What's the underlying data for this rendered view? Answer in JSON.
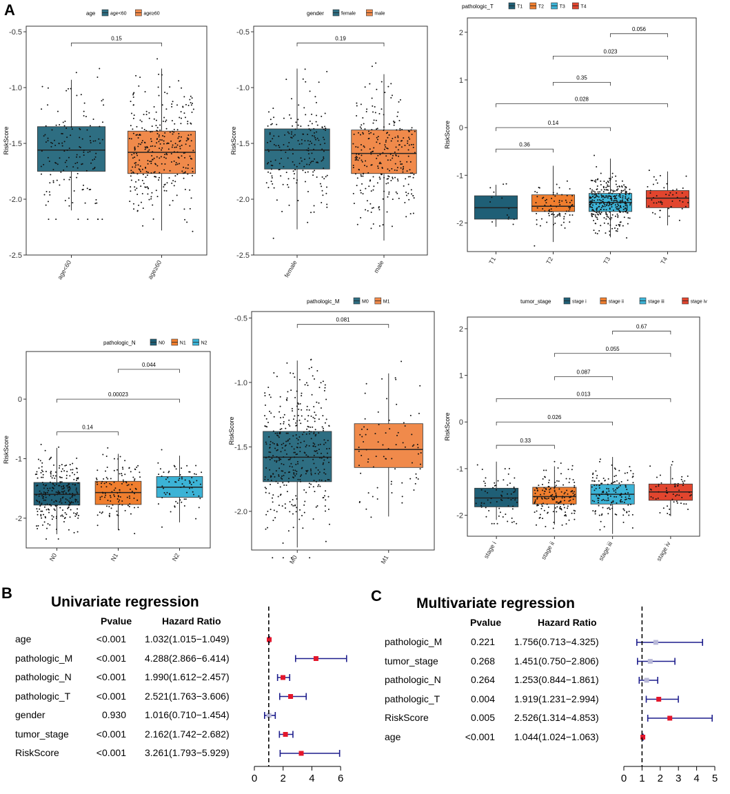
{
  "panels": {
    "a": "A",
    "b": "B",
    "c": "C"
  },
  "chart_data": [
    {
      "type": "box",
      "id": "age",
      "legend_title": "age",
      "categories": [
        "age<60",
        "age≥60"
      ],
      "colors": [
        "#2E6E82",
        "#F08A4B"
      ],
      "ylabel": "RiskScore",
      "ylim": [
        -2.5,
        -0.45
      ],
      "yticks": [
        -2.5,
        -2.0,
        -1.5,
        -1.0,
        -0.5
      ],
      "ytick_labels": [
        "-2.5",
        "-2.0",
        "-1.5",
        "-1.0",
        "-0.5"
      ],
      "boxes": [
        {
          "q1": -1.75,
          "median": -1.56,
          "q3": -1.35,
          "lo": -2.1,
          "hi": -0.93,
          "n": 150
        },
        {
          "q1": -1.77,
          "median": -1.58,
          "q3": -1.39,
          "lo": -2.28,
          "hi": -0.83,
          "n": 330
        }
      ],
      "comparisons": [
        {
          "from": 0,
          "to": 1,
          "label": "0.15",
          "y": -0.6
        }
      ]
    },
    {
      "type": "box",
      "id": "gender",
      "legend_title": "gender",
      "categories": [
        "female",
        "male"
      ],
      "colors": [
        "#2E6E82",
        "#F08A4B"
      ],
      "ylabel": "RiskScore",
      "ylim": [
        -2.5,
        -0.45
      ],
      "yticks": [
        -2.5,
        -2.0,
        -1.5,
        -1.0,
        -0.5
      ],
      "ytick_labels": [
        "-2.5",
        "-2.0",
        "-1.5",
        "-1.0",
        "-0.5"
      ],
      "boxes": [
        {
          "q1": -1.73,
          "median": -1.56,
          "q3": -1.37,
          "lo": -2.27,
          "hi": -0.83,
          "n": 200
        },
        {
          "q1": -1.77,
          "median": -1.59,
          "q3": -1.38,
          "lo": -2.37,
          "hi": -0.88,
          "n": 280
        }
      ],
      "comparisons": [
        {
          "from": 0,
          "to": 1,
          "label": "0.19",
          "y": -0.6
        }
      ]
    },
    {
      "type": "box",
      "id": "pathologic_T",
      "legend_title": "pathologic_T",
      "categories": [
        "T1",
        "T2",
        "T3",
        "T4"
      ],
      "colors": [
        "#1F5F76",
        "#F07E2E",
        "#3CB3D6",
        "#E2452E"
      ],
      "ylabel": "RiskScore",
      "ylim": [
        -2.6,
        2.3
      ],
      "yticks": [
        -2,
        -1,
        0,
        1,
        2
      ],
      "ytick_labels": [
        "-2",
        "-1",
        "0",
        "1",
        "2"
      ],
      "boxes": [
        {
          "q1": -1.92,
          "median": -1.68,
          "q3": -1.43,
          "lo": -2.08,
          "hi": -1.2,
          "n": 14
        },
        {
          "q1": -1.76,
          "median": -1.65,
          "q3": -1.41,
          "lo": -2.4,
          "hi": -0.8,
          "n": 80
        },
        {
          "q1": -1.76,
          "median": -1.57,
          "q3": -1.38,
          "lo": -2.3,
          "hi": -0.65,
          "n": 320
        },
        {
          "q1": -1.68,
          "median": -1.48,
          "q3": -1.32,
          "lo": -2.05,
          "hi": -0.92,
          "n": 50
        }
      ],
      "comparisons": [
        {
          "from": 0,
          "to": 1,
          "label": "0.36",
          "y": -0.45
        },
        {
          "from": 0,
          "to": 2,
          "label": "0.14",
          "y": 0.0
        },
        {
          "from": 0,
          "to": 3,
          "label": "0.028",
          "y": 0.5
        },
        {
          "from": 1,
          "to": 2,
          "label": "0.35",
          "y": 0.95
        },
        {
          "from": 1,
          "to": 3,
          "label": "0.023",
          "y": 1.5
        },
        {
          "from": 2,
          "to": 3,
          "label": "0.056",
          "y": 1.97
        }
      ]
    },
    {
      "type": "box",
      "id": "pathologic_N",
      "legend_title": "pathologic_N",
      "categories": [
        "N0",
        "N1",
        "N2"
      ],
      "colors": [
        "#1F5F76",
        "#F07E2E",
        "#3CB3D6"
      ],
      "ylabel": "RiskScore",
      "ylim": [
        -2.5,
        0.8
      ],
      "yticks": [
        -2,
        -1,
        0
      ],
      "ytick_labels": [
        "-2",
        "-1",
        "0"
      ],
      "boxes": [
        {
          "q1": -1.78,
          "median": -1.6,
          "q3": -1.4,
          "lo": -2.27,
          "hi": -0.82,
          "n": 260
        },
        {
          "q1": -1.77,
          "median": -1.57,
          "q3": -1.38,
          "lo": -2.2,
          "hi": -0.92,
          "n": 120
        },
        {
          "q1": -1.65,
          "median": -1.48,
          "q3": -1.3,
          "lo": -2.07,
          "hi": -0.95,
          "n": 70
        }
      ],
      "comparisons": [
        {
          "from": 0,
          "to": 1,
          "label": "0.14",
          "y": -0.55
        },
        {
          "from": 0,
          "to": 2,
          "label": "0.00023",
          "y": 0.0
        },
        {
          "from": 1,
          "to": 2,
          "label": "0.044",
          "y": 0.5
        }
      ]
    },
    {
      "type": "box",
      "id": "pathologic_M",
      "legend_title": "pathologic_M",
      "categories": [
        "M0",
        "M1"
      ],
      "colors": [
        "#2E6E82",
        "#F08A4B"
      ],
      "ylabel": "RiskScore",
      "ylim": [
        -2.3,
        -0.45
      ],
      "yticks": [
        -2.0,
        -1.5,
        -1.0,
        -0.5
      ],
      "ytick_labels": [
        "-2.0",
        "-1.5",
        "-1.0",
        "-0.5"
      ],
      "boxes": [
        {
          "q1": -1.77,
          "median": -1.58,
          "q3": -1.38,
          "lo": -2.28,
          "hi": -0.83,
          "n": 400
        },
        {
          "q1": -1.66,
          "median": -1.52,
          "q3": -1.32,
          "lo": -2.04,
          "hi": -0.93,
          "n": 80
        }
      ],
      "comparisons": [
        {
          "from": 0,
          "to": 1,
          "label": "0.081",
          "y": -0.55
        }
      ]
    },
    {
      "type": "box",
      "id": "tumor_stage",
      "legend_title": "tumor_stage",
      "categories": [
        "stage i",
        "stage ii",
        "stage iii",
        "stage iv"
      ],
      "colors": [
        "#1F5F76",
        "#F07E2E",
        "#3CB3D6",
        "#E2452E"
      ],
      "ylabel": "RiskScore",
      "ylim": [
        -2.45,
        2.25
      ],
      "yticks": [
        -2,
        -1,
        0,
        1,
        2
      ],
      "ytick_labels": [
        "-2",
        "-1",
        "0",
        "1",
        "2"
      ],
      "boxes": [
        {
          "q1": -1.82,
          "median": -1.63,
          "q3": -1.42,
          "lo": -2.1,
          "hi": -0.85,
          "n": 70
        },
        {
          "q1": -1.76,
          "median": -1.6,
          "q3": -1.4,
          "lo": -2.2,
          "hi": -0.95,
          "n": 160
        },
        {
          "q1": -1.76,
          "median": -1.55,
          "q3": -1.34,
          "lo": -2.4,
          "hi": -0.75,
          "n": 150
        },
        {
          "q1": -1.68,
          "median": -1.5,
          "q3": -1.33,
          "lo": -2.02,
          "hi": -0.95,
          "n": 60
        }
      ],
      "comparisons": [
        {
          "from": 0,
          "to": 1,
          "label": "0.33",
          "y": -0.5
        },
        {
          "from": 0,
          "to": 2,
          "label": "0.026",
          "y": 0.0
        },
        {
          "from": 0,
          "to": 3,
          "label": "0.013",
          "y": 0.5
        },
        {
          "from": 1,
          "to": 2,
          "label": "0.087",
          "y": 0.97
        },
        {
          "from": 1,
          "to": 3,
          "label": "0.055",
          "y": 1.47
        },
        {
          "from": 2,
          "to": 3,
          "label": "0.67",
          "y": 1.95
        }
      ]
    },
    {
      "type": "forest",
      "id": "univariate",
      "title": "Univariate regression",
      "col_pvalue": "Pvalue",
      "col_hr": "Hazard Ratio",
      "xlabel": "Hazard Ratio",
      "xlim": [
        0,
        7
      ],
      "xticks": [
        0,
        2,
        4,
        6
      ],
      "xtick_labels": [
        "0",
        "2",
        "4",
        "6"
      ],
      "ref_line": 1,
      "rows": [
        {
          "label": "age",
          "pvalue": "<0.001",
          "hr_text": "1.032(1.015−1.049)",
          "hr": 1.032,
          "lo": 1.015,
          "hi": 1.049,
          "significant": true
        },
        {
          "label": "pathologic_M",
          "pvalue": "<0.001",
          "hr_text": "4.288(2.866−6.414)",
          "hr": 4.288,
          "lo": 2.866,
          "hi": 6.414,
          "significant": true
        },
        {
          "label": "pathologic_N",
          "pvalue": "<0.001",
          "hr_text": "1.990(1.612−2.457)",
          "hr": 1.99,
          "lo": 1.612,
          "hi": 2.457,
          "significant": true
        },
        {
          "label": "pathologic_T",
          "pvalue": "<0.001",
          "hr_text": "2.521(1.763−3.606)",
          "hr": 2.521,
          "lo": 1.763,
          "hi": 3.606,
          "significant": true
        },
        {
          "label": "gender",
          "pvalue": "0.930",
          "hr_text": "1.016(0.710−1.454)",
          "hr": 1.016,
          "lo": 0.71,
          "hi": 1.454,
          "significant": false
        },
        {
          "label": "tumor_stage",
          "pvalue": "<0.001",
          "hr_text": "2.162(1.742−2.682)",
          "hr": 2.162,
          "lo": 1.742,
          "hi": 2.682,
          "significant": true
        },
        {
          "label": "RiskScore",
          "pvalue": "<0.001",
          "hr_text": "3.261(1.793−5.929)",
          "hr": 3.261,
          "lo": 1.793,
          "hi": 5.929,
          "significant": true
        }
      ]
    },
    {
      "type": "forest",
      "id": "multivariate",
      "title": "Multivariate regression",
      "col_pvalue": "Pvalue",
      "col_hr": "Hazard Ratio",
      "xlabel": "Hazard Ratio",
      "xlim": [
        0,
        5
      ],
      "xticks": [
        0,
        1,
        2,
        3,
        4,
        5
      ],
      "xtick_labels": [
        "0",
        "1",
        "2",
        "3",
        "4",
        "5"
      ],
      "ref_line": 1,
      "rows": [
        {
          "label": "pathologic_M",
          "pvalue": "0.221",
          "hr_text": "1.756(0.713−4.325)",
          "hr": 1.756,
          "lo": 0.713,
          "hi": 4.325,
          "significant": false
        },
        {
          "label": "tumor_stage",
          "pvalue": "0.268",
          "hr_text": "1.451(0.750−2.806)",
          "hr": 1.451,
          "lo": 0.75,
          "hi": 2.806,
          "significant": false
        },
        {
          "label": "pathologic_N",
          "pvalue": "0.264",
          "hr_text": "1.253(0.844−1.861)",
          "hr": 1.253,
          "lo": 0.844,
          "hi": 1.861,
          "significant": false
        },
        {
          "label": "pathologic_T",
          "pvalue": "0.004",
          "hr_text": "1.919(1.231−2.994)",
          "hr": 1.919,
          "lo": 1.231,
          "hi": 2.994,
          "significant": true
        },
        {
          "label": "RiskScore",
          "pvalue": "0.005",
          "hr_text": "2.526(1.314−4.853)",
          "hr": 2.526,
          "lo": 1.314,
          "hi": 4.853,
          "significant": true
        },
        {
          "label": "age",
          "pvalue": "<0.001",
          "hr_text": "1.044(1.024−1.063)",
          "hr": 1.044,
          "lo": 1.024,
          "hi": 1.063,
          "significant": true
        }
      ]
    }
  ]
}
